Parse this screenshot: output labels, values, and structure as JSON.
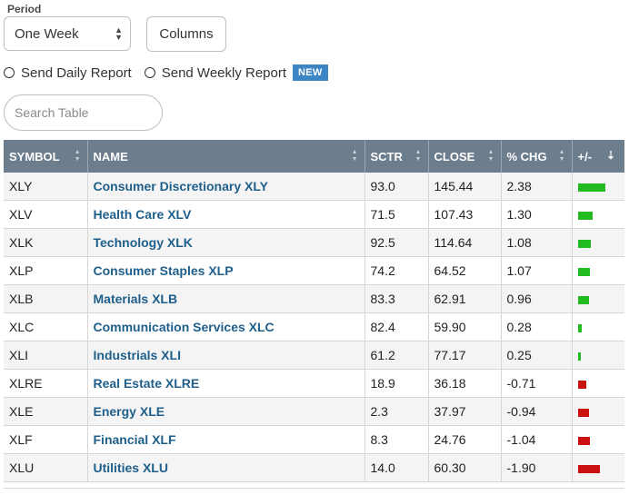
{
  "period": {
    "label": "Period",
    "selected": "One Week"
  },
  "columns_button": "Columns",
  "reports": {
    "daily": "Send Daily Report",
    "weekly": "Send Weekly Report",
    "new_badge": "NEW"
  },
  "search": {
    "placeholder": "Search Table"
  },
  "table": {
    "headers": [
      "SYMBOL",
      "NAME",
      "SCTR",
      "CLOSE",
      "% CHG",
      "+/-"
    ],
    "rows": [
      {
        "symbol": "XLY",
        "name": "Consumer Discretionary XLY",
        "sctr": "93.0",
        "close": "145.44",
        "chg": "2.38",
        "change_pct": 2.38
      },
      {
        "symbol": "XLV",
        "name": "Health Care XLV",
        "sctr": "71.5",
        "close": "107.43",
        "chg": "1.30",
        "change_pct": 1.3
      },
      {
        "symbol": "XLK",
        "name": "Technology XLK",
        "sctr": "92.5",
        "close": "114.64",
        "chg": "1.08",
        "change_pct": 1.08
      },
      {
        "symbol": "XLP",
        "name": "Consumer Staples XLP",
        "sctr": "74.2",
        "close": "64.52",
        "chg": "1.07",
        "change_pct": 1.07
      },
      {
        "symbol": "XLB",
        "name": "Materials XLB",
        "sctr": "83.3",
        "close": "62.91",
        "chg": "0.96",
        "change_pct": 0.96
      },
      {
        "symbol": "XLC",
        "name": "Communication Services XLC",
        "sctr": "82.4",
        "close": "59.90",
        "chg": "0.28",
        "change_pct": 0.28
      },
      {
        "symbol": "XLI",
        "name": "Industrials XLI",
        "sctr": "61.2",
        "close": "77.17",
        "chg": "0.25",
        "change_pct": 0.25
      },
      {
        "symbol": "XLRE",
        "name": "Real Estate XLRE",
        "sctr": "18.9",
        "close": "36.18",
        "chg": "-0.71",
        "change_pct": -0.71
      },
      {
        "symbol": "XLE",
        "name": "Energy XLE",
        "sctr": "2.3",
        "close": "37.97",
        "chg": "-0.94",
        "change_pct": -0.94
      },
      {
        "symbol": "XLF",
        "name": "Financial XLF",
        "sctr": "8.3",
        "close": "24.76",
        "chg": "-1.04",
        "change_pct": -1.04
      },
      {
        "symbol": "XLU",
        "name": "Utilities XLU",
        "sctr": "14.0",
        "close": "60.30",
        "chg": "-1.90",
        "change_pct": -1.9
      }
    ]
  },
  "colors": {
    "header_bg": "#6c7d8d",
    "link": "#1f5f8b",
    "positive_bar": "#22bb22",
    "negative_bar": "#cc1111",
    "badge": "#3d86c6"
  },
  "icons": {
    "select_arrows": "up-down-chevron-icon",
    "sort": "sort-arrows-icon",
    "sort_desc": "sort-descending-icon",
    "radio": "radio-empty-icon"
  }
}
